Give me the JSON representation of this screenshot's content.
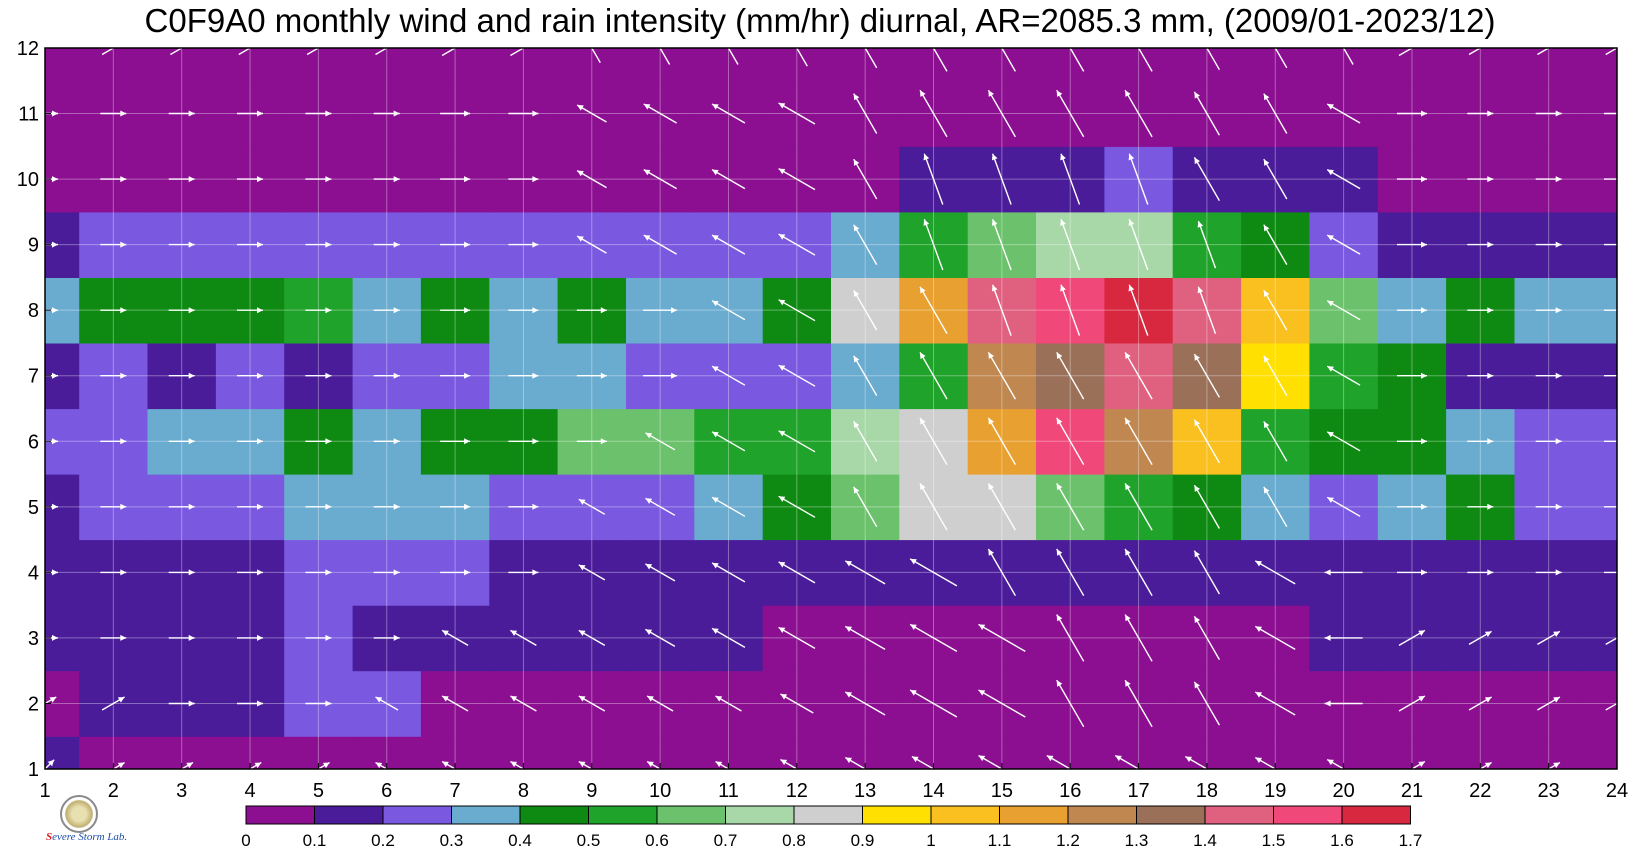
{
  "title": "C0F9A0 monthly wind and rain intensity (mm/hr) diurnal, AR=2085.3 mm, (2009/01-2023/12)",
  "colorbar": {
    "colors": [
      "#8b0f90",
      "#4a1c99",
      "#7a58e0",
      "#6aabd0",
      "#0e8a12",
      "#20a32a",
      "#6cc26c",
      "#a8d8a8",
      "#cfcfcf",
      "#ffe000",
      "#f9c020",
      "#e8a030",
      "#c08850",
      "#9a7058",
      "#e06080",
      "#f04878",
      "#d82840"
    ],
    "labels": [
      "0",
      "0.1",
      "0.2",
      "0.3",
      "0.4",
      "0.5",
      "0.6",
      "0.7",
      "0.8",
      "0.9",
      "1",
      "1.1",
      "1.2",
      "1.3",
      "1.4",
      "1.5",
      "1.6",
      "1.7"
    ]
  },
  "logo": {
    "text_s": "S",
    "text_rest": "evere Storm",
    "text_lab": "Lab."
  },
  "chart_data": {
    "type": "heatmap",
    "title": "C0F9A0 monthly wind and rain intensity (mm/hr) diurnal, AR=2085.3 mm, (2009/01-2023/12)",
    "x": [
      1,
      2,
      3,
      4,
      5,
      6,
      7,
      8,
      9,
      10,
      11,
      12,
      13,
      14,
      15,
      16,
      17,
      18,
      19,
      20,
      21,
      22,
      23,
      24
    ],
    "y": [
      1,
      2,
      3,
      4,
      5,
      6,
      7,
      8,
      9,
      10,
      11,
      12
    ],
    "xlim": [
      1,
      24
    ],
    "ylim": [
      1,
      12
    ],
    "xticks": [
      "1",
      "2",
      "3",
      "4",
      "5",
      "6",
      "7",
      "8",
      "9",
      "10",
      "11",
      "12",
      "13",
      "14",
      "15",
      "16",
      "17",
      "18",
      "19",
      "20",
      "21",
      "22",
      "23",
      "24"
    ],
    "yticks": [
      "1",
      "2",
      "3",
      "4",
      "5",
      "6",
      "7",
      "8",
      "9",
      "10",
      "11",
      "12"
    ],
    "grid": true,
    "levels": [
      0,
      0.1,
      0.2,
      0.3,
      0.4,
      0.5,
      0.6,
      0.7,
      0.8,
      0.9,
      1,
      1.1,
      1.2,
      1.3,
      1.4,
      1.5,
      1.6,
      1.7
    ],
    "rain_intensity": [
      [
        0.1,
        0.05,
        0.05,
        0.05,
        0.05,
        0.05,
        0.05,
        0.05,
        0.05,
        0.05,
        0.05,
        0.05,
        0.05,
        0.05,
        0.05,
        0.05,
        0.05,
        0.05,
        0.05,
        0.05,
        0.05,
        0.05,
        0.05,
        0.05
      ],
      [
        0.05,
        0.15,
        0.15,
        0.15,
        0.2,
        0.2,
        0.05,
        0.05,
        0.05,
        0.05,
        0.05,
        0.05,
        0.05,
        0.05,
        0.05,
        0.05,
        0.05,
        0.05,
        0.05,
        0.05,
        0.05,
        0.05,
        0.05,
        0.05
      ],
      [
        0.15,
        0.15,
        0.15,
        0.15,
        0.25,
        0.15,
        0.15,
        0.15,
        0.1,
        0.1,
        0.1,
        0.05,
        0.05,
        0.05,
        0.05,
        0.05,
        0.05,
        0.05,
        0.05,
        0.1,
        0.1,
        0.1,
        0.1,
        0.1
      ],
      [
        0.15,
        0.15,
        0.15,
        0.15,
        0.25,
        0.25,
        0.25,
        0.15,
        0.15,
        0.15,
        0.15,
        0.15,
        0.15,
        0.15,
        0.15,
        0.15,
        0.15,
        0.15,
        0.15,
        0.15,
        0.15,
        0.15,
        0.15,
        0.15
      ],
      [
        0.15,
        0.25,
        0.25,
        0.25,
        0.35,
        0.35,
        0.35,
        0.25,
        0.25,
        0.25,
        0.35,
        0.45,
        0.65,
        0.85,
        0.85,
        0.65,
        0.55,
        0.45,
        0.35,
        0.25,
        0.35,
        0.45,
        0.25,
        0.25
      ],
      [
        0.25,
        0.25,
        0.35,
        0.35,
        0.45,
        0.35,
        0.45,
        0.45,
        0.65,
        0.65,
        0.55,
        0.55,
        0.75,
        0.85,
        1.15,
        1.55,
        1.25,
        1.05,
        0.55,
        0.45,
        0.45,
        0.35,
        0.25,
        0.25
      ],
      [
        0.15,
        0.25,
        0.15,
        0.25,
        0.15,
        0.25,
        0.25,
        0.35,
        0.35,
        0.25,
        0.25,
        0.25,
        0.35,
        0.55,
        1.25,
        1.35,
        1.45,
        1.35,
        0.95,
        0.55,
        0.45,
        0.15,
        0.15,
        0.15
      ],
      [
        0.35,
        0.45,
        0.45,
        0.45,
        0.55,
        0.35,
        0.45,
        0.35,
        0.45,
        0.35,
        0.35,
        0.45,
        0.85,
        1.15,
        1.45,
        1.55,
        1.65,
        1.45,
        1.05,
        0.65,
        0.35,
        0.45,
        0.35,
        0.35
      ],
      [
        0.15,
        0.25,
        0.25,
        0.25,
        0.25,
        0.25,
        0.25,
        0.2,
        0.2,
        0.2,
        0.2,
        0.25,
        0.35,
        0.55,
        0.65,
        0.75,
        0.75,
        0.55,
        0.45,
        0.25,
        0.15,
        0.15,
        0.15,
        0.15
      ],
      [
        0.05,
        0.05,
        0.05,
        0.05,
        0.05,
        0.05,
        0.05,
        0.05,
        0.05,
        0.05,
        0.05,
        0.05,
        0.05,
        0.1,
        0.15,
        0.15,
        0.2,
        0.15,
        0.1,
        0.1,
        0.05,
        0.05,
        0.05,
        0.05
      ],
      [
        0.05,
        0.05,
        0.05,
        0.05,
        0.05,
        0.05,
        0.05,
        0.05,
        0.05,
        0.05,
        0.05,
        0.05,
        0.05,
        0.05,
        0.05,
        0.05,
        0.05,
        0.05,
        0.05,
        0.05,
        0.05,
        0.05,
        0.05,
        0.05
      ],
      [
        0.05,
        0.05,
        0.05,
        0.05,
        0.05,
        0.05,
        0.05,
        0.05,
        0.05,
        0.05,
        0.05,
        0.05,
        0.05,
        0.05,
        0.05,
        0.05,
        0.05,
        0.05,
        0.05,
        0.05,
        0.05,
        0.05,
        0.05,
        0.05
      ]
    ],
    "wind_direction_deg": [
      [
        45,
        60,
        60,
        60,
        60,
        300,
        300,
        300,
        300,
        300,
        300,
        300,
        300,
        300,
        300,
        300,
        300,
        300,
        300,
        300,
        60,
        60,
        60,
        60
      ],
      [
        60,
        60,
        90,
        90,
        90,
        300,
        300,
        300,
        300,
        300,
        300,
        300,
        300,
        300,
        300,
        330,
        330,
        330,
        300,
        270,
        60,
        60,
        60,
        60
      ],
      [
        90,
        90,
        90,
        90,
        90,
        90,
        300,
        300,
        300,
        300,
        300,
        300,
        300,
        300,
        300,
        330,
        330,
        330,
        300,
        270,
        60,
        60,
        60,
        60
      ],
      [
        90,
        90,
        90,
        90,
        90,
        90,
        90,
        90,
        300,
        300,
        300,
        300,
        300,
        300,
        330,
        330,
        330,
        330,
        300,
        270,
        90,
        90,
        90,
        90
      ],
      [
        90,
        90,
        90,
        90,
        90,
        90,
        90,
        90,
        300,
        300,
        300,
        300,
        330,
        330,
        330,
        330,
        330,
        330,
        330,
        300,
        90,
        90,
        90,
        90
      ],
      [
        90,
        90,
        90,
        90,
        90,
        90,
        90,
        90,
        90,
        300,
        300,
        300,
        330,
        330,
        330,
        330,
        330,
        330,
        330,
        300,
        90,
        90,
        90,
        90
      ],
      [
        90,
        90,
        90,
        90,
        90,
        90,
        90,
        90,
        90,
        90,
        300,
        300,
        330,
        330,
        330,
        330,
        330,
        330,
        330,
        300,
        90,
        90,
        90,
        90
      ],
      [
        90,
        90,
        90,
        90,
        90,
        90,
        90,
        90,
        90,
        90,
        300,
        300,
        330,
        330,
        340,
        340,
        340,
        340,
        330,
        300,
        90,
        90,
        90,
        90
      ],
      [
        90,
        90,
        90,
        90,
        90,
        90,
        90,
        90,
        300,
        300,
        300,
        300,
        330,
        340,
        340,
        340,
        340,
        340,
        330,
        300,
        90,
        90,
        90,
        90
      ],
      [
        90,
        90,
        90,
        90,
        90,
        90,
        90,
        90,
        300,
        300,
        300,
        300,
        330,
        340,
        340,
        340,
        340,
        330,
        330,
        300,
        90,
        90,
        90,
        90
      ],
      [
        90,
        90,
        90,
        90,
        90,
        90,
        90,
        90,
        300,
        300,
        300,
        300,
        330,
        330,
        330,
        330,
        330,
        330,
        330,
        300,
        90,
        90,
        90,
        90
      ],
      [
        60,
        60,
        60,
        60,
        60,
        60,
        60,
        60,
        330,
        330,
        330,
        330,
        330,
        330,
        330,
        330,
        330,
        330,
        330,
        330,
        60,
        60,
        60,
        60
      ]
    ],
    "wind_speed": [
      [
        0.3,
        0.3,
        0.3,
        0.3,
        0.3,
        0.3,
        0.4,
        0.4,
        0.4,
        0.4,
        0.4,
        0.6,
        0.8,
        0.9,
        1,
        1,
        1,
        0.9,
        0.8,
        0.6,
        0.4,
        0.3,
        0.3,
        0.3
      ],
      [
        0.3,
        0.3,
        0.3,
        0.3,
        0.3,
        0.3,
        0.4,
        0.4,
        0.4,
        0.4,
        0.4,
        0.6,
        0.8,
        1,
        1,
        1,
        1,
        0.9,
        0.8,
        0.6,
        0.4,
        0.3,
        0.3,
        0.3
      ],
      [
        0.3,
        0.3,
        0.3,
        0.3,
        0.3,
        0.3,
        0.4,
        0.4,
        0.4,
        0.5,
        0.6,
        0.7,
        0.8,
        1,
        1,
        1,
        1,
        0.9,
        0.8,
        0.6,
        0.4,
        0.3,
        0.3,
        0.3
      ],
      [
        0.3,
        0.3,
        0.3,
        0.3,
        0.3,
        0.3,
        0.4,
        0.4,
        0.4,
        0.5,
        0.6,
        0.7,
        0.8,
        1,
        1,
        1,
        1,
        0.9,
        0.8,
        0.6,
        0.4,
        0.3,
        0.3,
        0.3
      ],
      [
        0.3,
        0.3,
        0.3,
        0.3,
        0.3,
        0.3,
        0.4,
        0.4,
        0.4,
        0.5,
        0.6,
        0.7,
        0.8,
        1,
        1,
        1,
        1,
        0.9,
        0.8,
        0.6,
        0.4,
        0.3,
        0.3,
        0.3
      ],
      [
        0.3,
        0.3,
        0.3,
        0.3,
        0.3,
        0.3,
        0.4,
        0.4,
        0.4,
        0.5,
        0.6,
        0.7,
        0.8,
        1,
        1,
        1,
        1,
        0.9,
        0.8,
        0.6,
        0.4,
        0.3,
        0.3,
        0.3
      ],
      [
        0.3,
        0.3,
        0.3,
        0.3,
        0.3,
        0.3,
        0.4,
        0.4,
        0.4,
        0.5,
        0.6,
        0.7,
        0.8,
        1,
        1,
        1,
        1,
        0.9,
        0.8,
        0.6,
        0.4,
        0.3,
        0.3,
        0.3
      ],
      [
        0.3,
        0.3,
        0.3,
        0.3,
        0.3,
        0.3,
        0.4,
        0.4,
        0.4,
        0.5,
        0.6,
        0.7,
        0.8,
        1,
        1,
        1,
        1,
        0.9,
        0.8,
        0.6,
        0.4,
        0.3,
        0.3,
        0.3
      ],
      [
        0.3,
        0.3,
        0.3,
        0.3,
        0.3,
        0.3,
        0.4,
        0.4,
        0.5,
        0.6,
        0.6,
        0.7,
        0.8,
        1,
        1,
        1,
        1,
        0.9,
        0.8,
        0.6,
        0.4,
        0.3,
        0.3,
        0.3
      ],
      [
        0.3,
        0.3,
        0.3,
        0.3,
        0.3,
        0.3,
        0.4,
        0.4,
        0.5,
        0.6,
        0.6,
        0.7,
        0.8,
        1,
        1,
        1,
        1,
        0.9,
        0.8,
        0.6,
        0.4,
        0.3,
        0.3,
        0.3
      ],
      [
        0.3,
        0.3,
        0.3,
        0.3,
        0.3,
        0.3,
        0.4,
        0.4,
        0.5,
        0.6,
        0.6,
        0.7,
        0.8,
        1,
        1,
        1,
        1,
        0.9,
        0.8,
        0.6,
        0.4,
        0.3,
        0.3,
        0.3
      ],
      [
        0.3,
        0.3,
        0.3,
        0.3,
        0.3,
        0.3,
        0.4,
        0.4,
        0.5,
        0.6,
        0.6,
        0.7,
        0.8,
        1,
        1,
        1,
        1,
        0.9,
        0.8,
        0.6,
        0.4,
        0.3,
        0.3,
        0.3
      ]
    ]
  }
}
